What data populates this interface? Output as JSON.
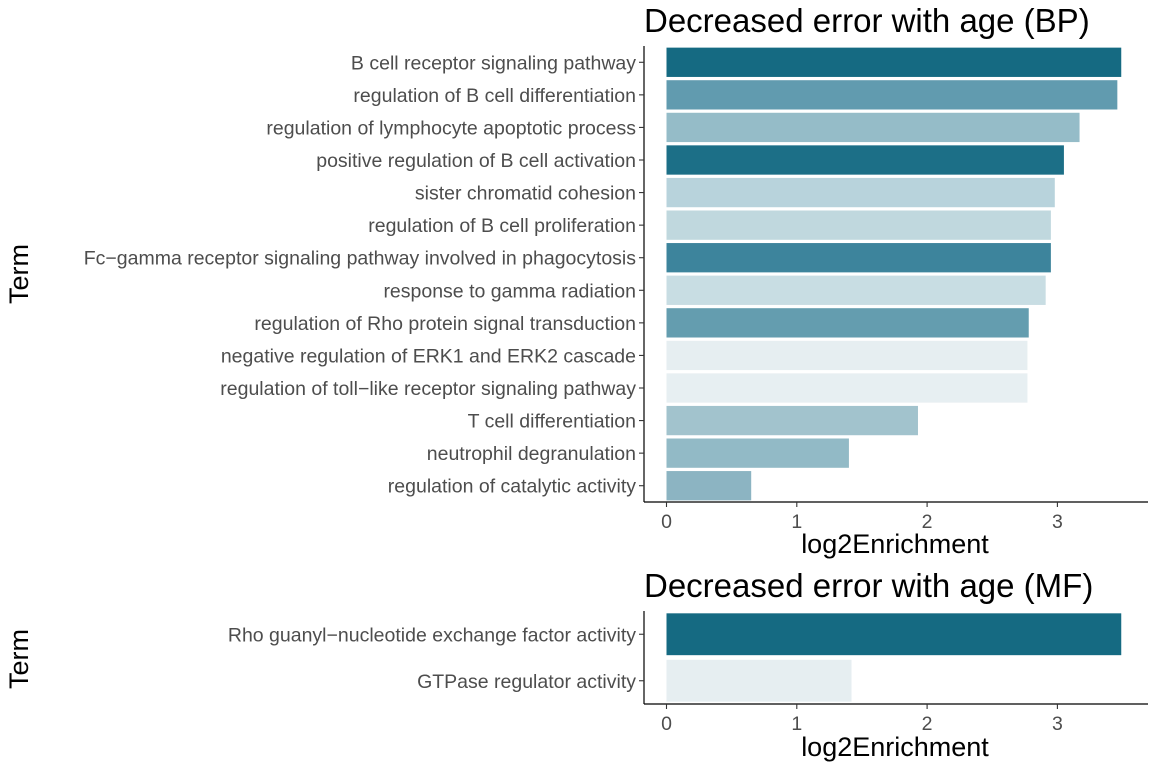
{
  "chart_data": [
    {
      "type": "bar",
      "orientation": "horizontal",
      "title": "Decreased error with age (BP)",
      "xlabel": "log2Enrichment",
      "ylabel": "Term",
      "xlim": [
        0,
        3.5
      ],
      "xticks": [
        "0",
        "1",
        "2",
        "3"
      ],
      "grid": false,
      "legend": "none",
      "categories": [
        "B cell receptor signaling pathway",
        "regulation of B cell differentiation",
        "regulation of lymphocyte apoptotic process",
        "positive regulation of B cell activation",
        "sister chromatid cohesion",
        "regulation of B cell proliferation",
        "Fc−gamma receptor signaling pathway involved in phagocytosis",
        "response to gamma radiation",
        "regulation of Rho protein signal transduction",
        "negative regulation of ERK1 and ERK2 cascade",
        "regulation of toll−like receptor signaling pathway",
        "T cell differentiation",
        "neutrophil degranulation",
        "regulation of catalytic activity"
      ],
      "values": [
        3.49,
        3.46,
        3.17,
        3.05,
        2.98,
        2.95,
        2.95,
        2.91,
        2.78,
        2.77,
        2.77,
        1.93,
        1.4,
        0.65
      ],
      "colors": [
        "#156a82",
        "#619baf",
        "#95bcc8",
        "#1c6f87",
        "#b8d3dc",
        "#c0d8de",
        "#3d849c",
        "#c8dde3",
        "#649daf",
        "#e6eef1",
        "#e7eff2",
        "#a2c3cd",
        "#92bac6",
        "#8cb4c2"
      ]
    },
    {
      "type": "bar",
      "orientation": "horizontal",
      "title": "Decreased error with age (MF)",
      "xlabel": "log2Enrichment",
      "ylabel": "Term",
      "xlim": [
        0,
        3.5
      ],
      "xticks": [
        "0",
        "1",
        "2",
        "3"
      ],
      "grid": false,
      "legend": "none",
      "categories": [
        "Rho guanyl−nucleotide exchange factor activity",
        "GTPase regulator activity"
      ],
      "values": [
        3.49,
        1.42
      ],
      "colors": [
        "#156a82",
        "#e6eef1"
      ]
    }
  ]
}
